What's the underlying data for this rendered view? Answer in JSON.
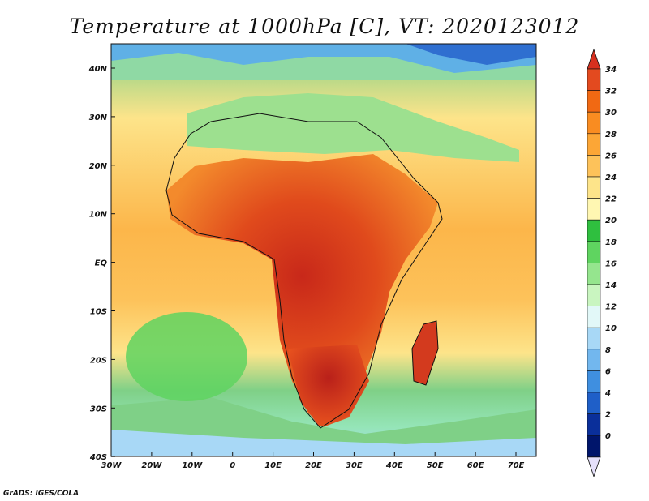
{
  "title": "Temperature at 1000hPa [C], VT: 2020123012",
  "credit": "GrADS: IGES/COLA",
  "map": {
    "lon_ticks": [
      "30W",
      "20W",
      "10W",
      "0",
      "10E",
      "20E",
      "30E",
      "40E",
      "50E",
      "60E",
      "70E"
    ],
    "lat_ticks": [
      "40N",
      "30N",
      "20N",
      "10N",
      "EQ",
      "10S",
      "20S",
      "30S",
      "40S"
    ]
  },
  "colorbar": {
    "labels": [
      "34",
      "32",
      "30",
      "28",
      "26",
      "24",
      "22",
      "20",
      "18",
      "16",
      "14",
      "12",
      "10",
      "8",
      "6",
      "4",
      "2",
      "0"
    ],
    "colors": [
      "#d7301f",
      "#e34a1f",
      "#f16913",
      "#f98c21",
      "#fca636",
      "#fdc25a",
      "#fde48a",
      "#fff7b2",
      "#2fbf3f",
      "#5fd460",
      "#95e58e",
      "#c9f5c0",
      "#e2f8f8",
      "#a8d8f6",
      "#72b7ee",
      "#3f8fe0",
      "#1f5fc8",
      "#0a2f9a",
      "#00156b",
      "#e5e0fb"
    ]
  }
}
